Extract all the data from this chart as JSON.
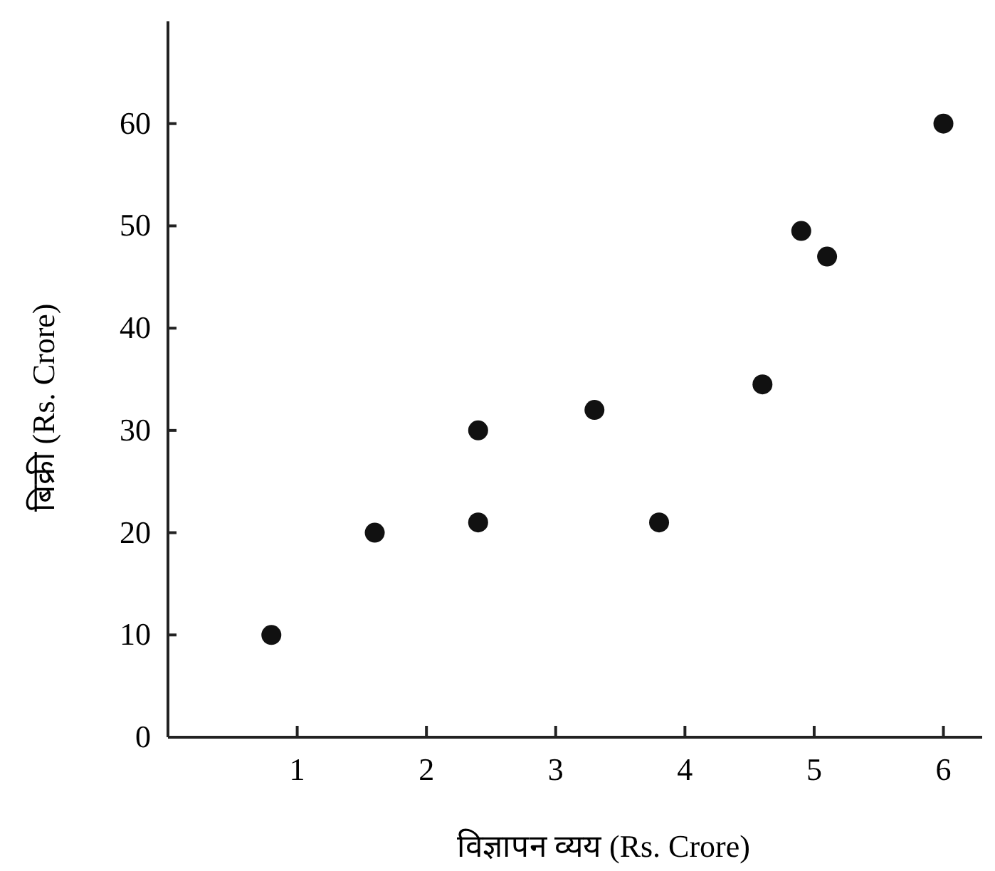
{
  "chart_data": {
    "type": "scatter",
    "xlabel": "विज्ञापन व्यय (Rs. Crore)",
    "ylabel": "बिक्री (Rs. Crore)",
    "x": [
      0.8,
      1.6,
      2.4,
      2.4,
      3.3,
      3.8,
      4.6,
      4.9,
      5.1,
      6.0
    ],
    "series": [
      {
        "color": "#111111",
        "values": [
          10,
          20,
          30,
          21,
          32,
          21,
          34.5,
          49.5,
          47,
          60
        ]
      }
    ],
    "xlim": [
      0,
      6.3
    ],
    "ylim": [
      0,
      70
    ],
    "xticks": [
      1,
      2,
      3,
      4,
      5,
      6
    ],
    "yticks": [
      0,
      10,
      20,
      30,
      40,
      50,
      60
    ],
    "marker": "circle",
    "grid": false
  }
}
